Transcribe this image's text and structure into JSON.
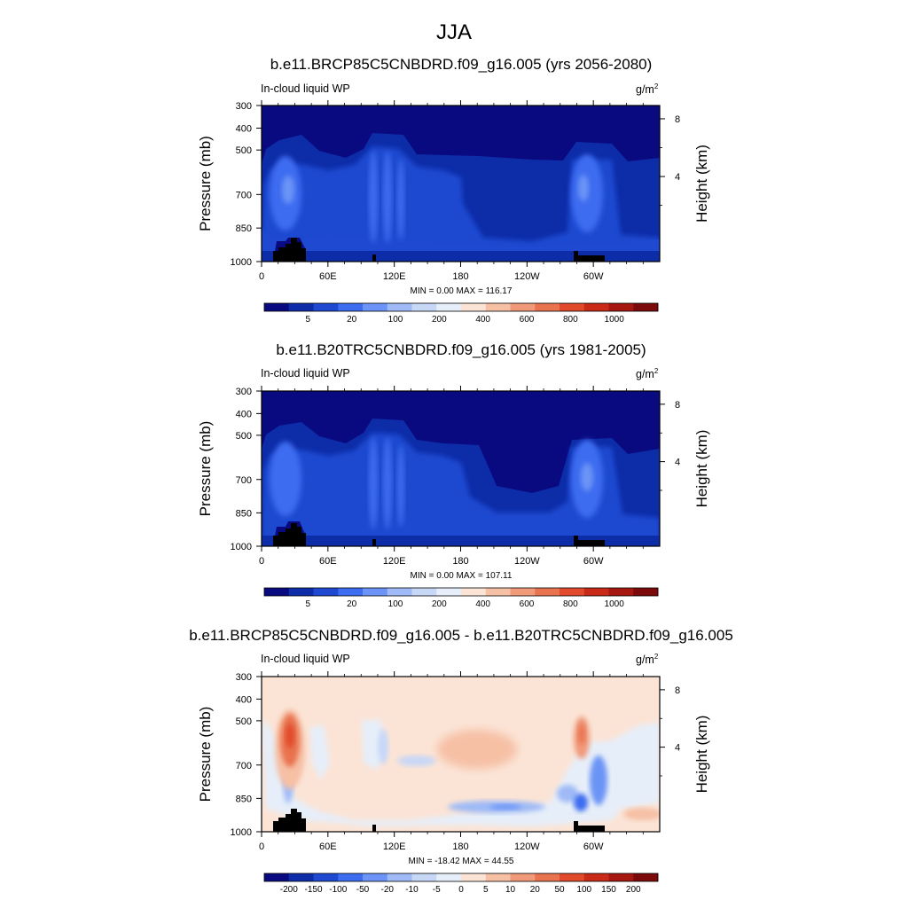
{
  "figure": {
    "title": "JJA",
    "units": "g/m",
    "units_superscript": "2",
    "variable_label": "In-cloud liquid WP",
    "ylabel_left": "Pressure (mb)",
    "ylabel_right": "Height (km)"
  },
  "chart_data": [
    {
      "type": "heatmap",
      "title": "b.e11.BRCP85C5CNBDRD.f09_g16.005 (yrs 2056-2080)",
      "xlabel": "",
      "ylabel": "Pressure (mb)",
      "x_ticks": [
        "0",
        "60E",
        "120E",
        "180",
        "120W",
        "60W"
      ],
      "y_ticks": [
        "300",
        "400",
        "500",
        "700",
        "850",
        "1000"
      ],
      "y2_ticks": [
        "8",
        "4"
      ],
      "stats": "MIN =   0.00  MAX = 116.17",
      "colorbar_labels": [
        "5",
        "20",
        "100",
        "200",
        "400",
        "600",
        "800",
        "1000"
      ],
      "colorbar_colors": [
        "#0a0a80",
        "#0d2ca8",
        "#1f49d0",
        "#3c6cf0",
        "#6c94f6",
        "#9fbaf6",
        "#c7d7f6",
        "#e6eef9",
        "#fbe4d6",
        "#f6c0a5",
        "#f09a7a",
        "#e9734f",
        "#e04a2b",
        "#c92a18",
        "#a6170f",
        "#7c0a0a"
      ],
      "range": [
        0.0,
        116.17
      ]
    },
    {
      "type": "heatmap",
      "title": "b.e11.B20TRC5CNBDRD.f09_g16.005 (yrs 1981-2005)",
      "xlabel": "",
      "ylabel": "Pressure (mb)",
      "x_ticks": [
        "0",
        "60E",
        "120E",
        "180",
        "120W",
        "60W"
      ],
      "y_ticks": [
        "300",
        "400",
        "500",
        "700",
        "850",
        "1000"
      ],
      "y2_ticks": [
        "8",
        "4"
      ],
      "stats": "MIN =   0.00  MAX = 107.11",
      "colorbar_labels": [
        "5",
        "20",
        "100",
        "200",
        "400",
        "600",
        "800",
        "1000"
      ],
      "colorbar_colors": [
        "#0a0a80",
        "#0d2ca8",
        "#1f49d0",
        "#3c6cf0",
        "#6c94f6",
        "#9fbaf6",
        "#c7d7f6",
        "#e6eef9",
        "#fbe4d6",
        "#f6c0a5",
        "#f09a7a",
        "#e9734f",
        "#e04a2b",
        "#c92a18",
        "#a6170f",
        "#7c0a0a"
      ],
      "range": [
        0.0,
        107.11
      ]
    },
    {
      "type": "heatmap",
      "title": "b.e11.BRCP85C5CNBDRD.f09_g16.005 - b.e11.B20TRC5CNBDRD.f09_g16.005",
      "xlabel": "",
      "ylabel": "Pressure (mb)",
      "x_ticks": [
        "0",
        "60E",
        "120E",
        "180",
        "120W",
        "60W"
      ],
      "y_ticks": [
        "300",
        "400",
        "500",
        "700",
        "850",
        "1000"
      ],
      "y2_ticks": [
        "8",
        "4"
      ],
      "stats": "MIN = -18.42  MAX =  44.55",
      "colorbar_labels": [
        "-200",
        "-150",
        "-100",
        "-50",
        "-20",
        "-10",
        "-5",
        "0",
        "5",
        "10",
        "20",
        "50",
        "100",
        "150",
        "200"
      ],
      "colorbar_colors": [
        "#0a0a80",
        "#0d2ca8",
        "#1f49d0",
        "#3c6cf0",
        "#6c94f6",
        "#9fbaf6",
        "#c7d7f6",
        "#e6eef9",
        "#fbe4d6",
        "#f6c0a5",
        "#f09a7a",
        "#e9734f",
        "#e04a2b",
        "#c92a18",
        "#a6170f",
        "#7c0a0a"
      ],
      "range": [
        -18.42,
        44.55
      ]
    }
  ]
}
